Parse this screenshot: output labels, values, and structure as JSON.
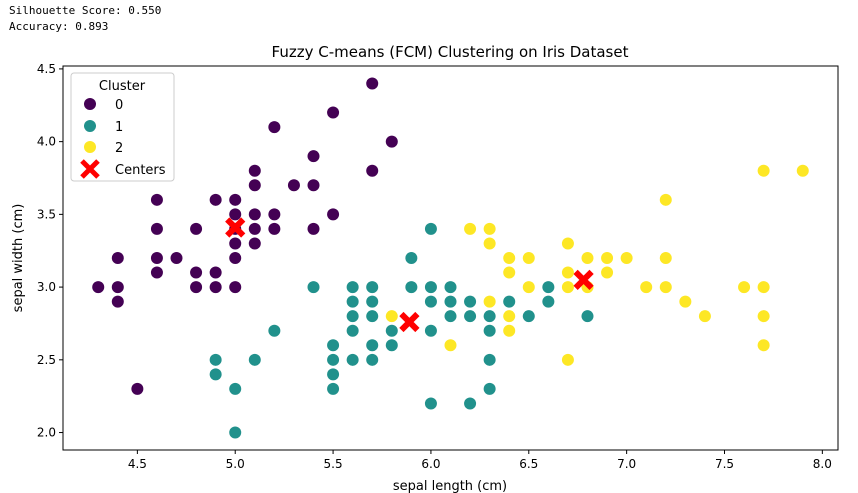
{
  "stats": {
    "silhouette": "Silhouette Score: 0.550",
    "accuracy": "Accuracy: 0.893"
  },
  "chart_data": {
    "type": "scatter",
    "title": "Fuzzy C-means (FCM) Clustering on Iris Dataset",
    "xlabel": "sepal length (cm)",
    "ylabel": "sepal width (cm)",
    "xlim": [
      4.12,
      8.08
    ],
    "ylim": [
      1.88,
      4.52
    ],
    "xticks": [
      "4.5",
      "5.0",
      "5.5",
      "6.0",
      "6.5",
      "7.0",
      "7.5",
      "8.0"
    ],
    "yticks": [
      "2.0",
      "2.5",
      "3.0",
      "3.5",
      "4.0",
      "4.5"
    ],
    "legend": {
      "title": "Cluster",
      "position": "top-left",
      "entries": [
        "0",
        "1",
        "2",
        "Centers"
      ]
    },
    "colors": {
      "0": "#440154",
      "1": "#21918c",
      "2": "#fde725",
      "centers": "#ff0000"
    },
    "series": [
      {
        "name": "0",
        "points": [
          [
            4.3,
            3.0
          ],
          [
            4.4,
            3.2
          ],
          [
            4.4,
            3.0
          ],
          [
            4.4,
            2.9
          ],
          [
            4.5,
            2.3
          ],
          [
            4.6,
            3.6
          ],
          [
            4.6,
            3.4
          ],
          [
            4.6,
            3.2
          ],
          [
            4.6,
            3.1
          ],
          [
            4.7,
            3.2
          ],
          [
            4.8,
            3.4
          ],
          [
            4.8,
            3.1
          ],
          [
            4.8,
            3.0
          ],
          [
            4.9,
            3.6
          ],
          [
            4.9,
            3.1
          ],
          [
            4.9,
            3.0
          ],
          [
            5.0,
            3.6
          ],
          [
            5.0,
            3.5
          ],
          [
            5.0,
            3.4
          ],
          [
            5.0,
            3.3
          ],
          [
            5.0,
            3.2
          ],
          [
            5.0,
            3.0
          ],
          [
            5.1,
            3.8
          ],
          [
            5.1,
            3.7
          ],
          [
            5.1,
            3.5
          ],
          [
            5.1,
            3.4
          ],
          [
            5.1,
            3.3
          ],
          [
            5.2,
            4.1
          ],
          [
            5.2,
            3.5
          ],
          [
            5.2,
            3.4
          ],
          [
            5.3,
            3.7
          ],
          [
            5.4,
            3.9
          ],
          [
            5.4,
            3.7
          ],
          [
            5.4,
            3.4
          ],
          [
            5.5,
            4.2
          ],
          [
            5.5,
            3.5
          ],
          [
            5.7,
            4.4
          ],
          [
            5.7,
            3.8
          ],
          [
            5.8,
            4.0
          ]
        ]
      },
      {
        "name": "1",
        "points": [
          [
            4.9,
            2.5
          ],
          [
            4.9,
            2.4
          ],
          [
            5.0,
            2.3
          ],
          [
            5.0,
            2.0
          ],
          [
            5.1,
            2.5
          ],
          [
            5.2,
            2.7
          ],
          [
            5.4,
            3.0
          ],
          [
            5.5,
            2.6
          ],
          [
            5.5,
            2.5
          ],
          [
            5.5,
            2.4
          ],
          [
            5.5,
            2.3
          ],
          [
            5.6,
            3.0
          ],
          [
            5.6,
            2.9
          ],
          [
            5.6,
            2.8
          ],
          [
            5.6,
            2.7
          ],
          [
            5.6,
            2.5
          ],
          [
            5.7,
            3.0
          ],
          [
            5.7,
            2.9
          ],
          [
            5.7,
            2.8
          ],
          [
            5.7,
            2.6
          ],
          [
            5.7,
            2.5
          ],
          [
            5.8,
            2.7
          ],
          [
            5.8,
            2.6
          ],
          [
            5.9,
            3.2
          ],
          [
            5.9,
            3.0
          ],
          [
            6.0,
            3.4
          ],
          [
            6.0,
            3.0
          ],
          [
            6.0,
            2.9
          ],
          [
            6.0,
            2.7
          ],
          [
            6.0,
            2.2
          ],
          [
            6.1,
            3.0
          ],
          [
            6.1,
            2.9
          ],
          [
            6.1,
            2.8
          ],
          [
            6.2,
            2.9
          ],
          [
            6.2,
            2.8
          ],
          [
            6.2,
            2.2
          ],
          [
            6.3,
            2.8
          ],
          [
            6.3,
            2.7
          ],
          [
            6.3,
            2.5
          ],
          [
            6.3,
            2.3
          ],
          [
            6.4,
            2.9
          ],
          [
            6.5,
            2.8
          ],
          [
            6.6,
            3.0
          ],
          [
            6.6,
            2.9
          ],
          [
            6.8,
            2.8
          ]
        ]
      },
      {
        "name": "2",
        "points": [
          [
            5.8,
            2.8
          ],
          [
            6.1,
            2.6
          ],
          [
            6.2,
            3.4
          ],
          [
            6.3,
            3.4
          ],
          [
            6.3,
            3.3
          ],
          [
            6.3,
            2.9
          ],
          [
            6.4,
            3.2
          ],
          [
            6.4,
            3.1
          ],
          [
            6.4,
            2.8
          ],
          [
            6.4,
            2.7
          ],
          [
            6.5,
            3.2
          ],
          [
            6.5,
            3.0
          ],
          [
            6.7,
            3.3
          ],
          [
            6.7,
            3.1
          ],
          [
            6.7,
            3.0
          ],
          [
            6.7,
            2.5
          ],
          [
            6.8,
            3.2
          ],
          [
            6.8,
            3.0
          ],
          [
            6.9,
            3.2
          ],
          [
            6.9,
            3.1
          ],
          [
            7.0,
            3.2
          ],
          [
            7.1,
            3.0
          ],
          [
            7.2,
            3.6
          ],
          [
            7.2,
            3.2
          ],
          [
            7.2,
            3.0
          ],
          [
            7.3,
            2.9
          ],
          [
            7.4,
            2.8
          ],
          [
            7.6,
            3.0
          ],
          [
            7.7,
            3.8
          ],
          [
            7.7,
            3.0
          ],
          [
            7.7,
            2.8
          ],
          [
            7.7,
            2.6
          ],
          [
            7.9,
            3.8
          ]
        ]
      }
    ],
    "centers": [
      [
        5.0,
        3.41
      ],
      [
        5.89,
        2.76
      ],
      [
        6.78,
        3.05
      ]
    ]
  }
}
